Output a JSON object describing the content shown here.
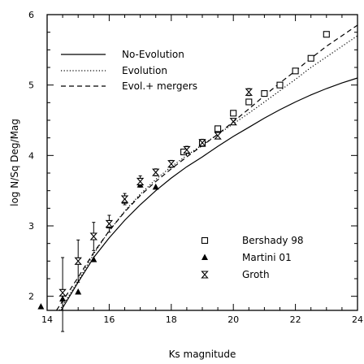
{
  "chart_data": {
    "type": "scatter",
    "title": "",
    "xlabel": "Ks magnitude",
    "ylabel": "log N/Sq Deg/Mag",
    "xlim": [
      14,
      24
    ],
    "ylim": [
      1.8,
      6
    ],
    "x_ticks": [
      14,
      16,
      18,
      20,
      22,
      24
    ],
    "y_ticks": [
      2,
      3,
      4,
      5,
      6
    ],
    "grid": false,
    "model_curves": [
      {
        "name": "No-Evolution",
        "style": "solid",
        "x": [
          14.45,
          15,
          15.5,
          16,
          16.5,
          17,
          17.5,
          18,
          18.5,
          19,
          19.5,
          20,
          20.5,
          21,
          21.5,
          22,
          22.5,
          23,
          23.5,
          24
        ],
        "y": [
          1.8,
          2.2,
          2.55,
          2.83,
          3.08,
          3.3,
          3.5,
          3.68,
          3.84,
          3.98,
          4.13,
          4.27,
          4.4,
          4.53,
          4.65,
          4.76,
          4.86,
          4.95,
          5.03,
          5.1
        ]
      },
      {
        "name": "Evolution",
        "style": "dotted",
        "x": [
          14.4,
          15,
          15.5,
          16,
          16.5,
          17,
          17.5,
          18,
          18.5,
          19,
          19.5,
          20,
          20.5,
          21,
          21.5,
          22,
          22.5,
          23,
          23.5,
          24
        ],
        "y": [
          1.8,
          2.22,
          2.6,
          2.93,
          3.21,
          3.45,
          3.66,
          3.84,
          4.0,
          4.15,
          4.3,
          4.45,
          4.6,
          4.76,
          4.92,
          5.08,
          5.25,
          5.4,
          5.55,
          5.7
        ]
      },
      {
        "name": "Evol.+ mergers",
        "style": "dashed",
        "x": [
          14.3,
          15,
          15.5,
          16,
          16.5,
          17,
          17.5,
          18,
          18.5,
          19,
          19.5,
          20,
          20.5,
          21,
          21.5,
          22,
          22.5,
          23,
          23.5,
          24
        ],
        "y": [
          1.8,
          2.27,
          2.62,
          2.93,
          3.2,
          3.43,
          3.63,
          3.81,
          3.98,
          4.14,
          4.3,
          4.48,
          4.66,
          4.85,
          5.03,
          5.2,
          5.38,
          5.55,
          5.7,
          5.85
        ]
      }
    ],
    "series": [
      {
        "name": "Bershady 98",
        "marker": "open-square",
        "x": [
          18.4,
          19.0,
          19.5,
          20.0,
          20.5,
          21.0,
          21.5,
          22.0,
          22.5,
          23.0
        ],
        "y": [
          4.05,
          4.17,
          4.38,
          4.6,
          4.76,
          4.88,
          5.0,
          5.2,
          5.38,
          5.72
        ]
      },
      {
        "name": "Martini 01",
        "marker": "filled-triangle",
        "x": [
          13.8,
          14.5,
          15.0,
          15.5,
          16.0,
          16.5,
          17.0,
          17.5
        ],
        "y": [
          1.85,
          1.96,
          2.06,
          2.52,
          3.0,
          3.35,
          3.58,
          3.55
        ]
      },
      {
        "name": "Groth",
        "marker": "hourglass",
        "x": [
          14.5,
          15.0,
          15.5,
          16.0,
          16.5,
          17.0,
          17.5,
          18.0,
          18.5,
          19.0,
          19.5,
          20.0,
          20.5
        ],
        "y": [
          2.05,
          2.5,
          2.85,
          3.03,
          3.38,
          3.63,
          3.76,
          3.88,
          4.08,
          4.18,
          4.28,
          4.48,
          4.9
        ],
        "yerr_low": [
          0.55,
          0.3,
          0.2,
          0.12,
          0.08,
          0.08,
          0.05,
          0.05,
          0.05,
          0.05,
          0.04,
          0.04,
          0.05
        ],
        "yerr_high": [
          0.5,
          0.3,
          0.2,
          0.12,
          0.08,
          0.08,
          0.05,
          0.05,
          0.05,
          0.05,
          0.04,
          0.04,
          0.05
        ]
      }
    ],
    "legends": {
      "models_position": "top-left",
      "data_position": "bottom-right"
    }
  }
}
